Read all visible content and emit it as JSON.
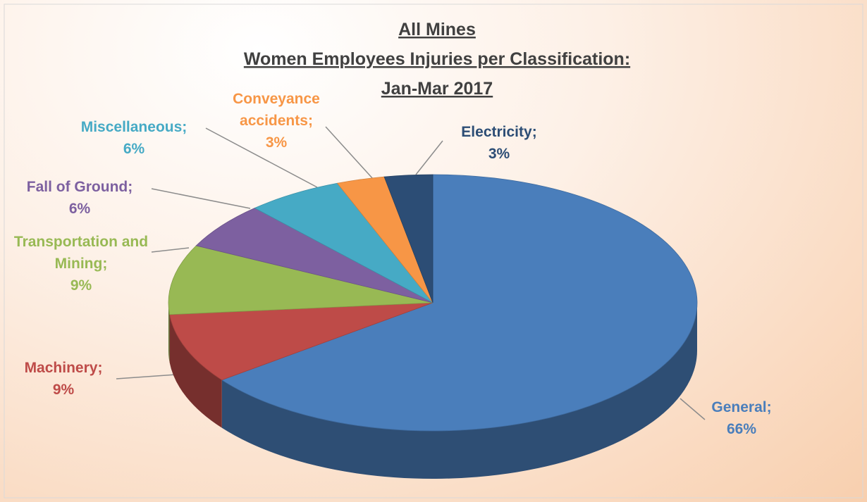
{
  "chart_data": {
    "type": "pie3d",
    "title": [
      "All Mines",
      "Women Employees Injuries per Classification:",
      "Jan-Mar 2017"
    ],
    "categories": [
      "General",
      "Machinery",
      "Transportation and Mining",
      "Fall of Ground",
      "Miscellaneous",
      "Conveyance accidents",
      "Electricity"
    ],
    "values": [
      66,
      9,
      9,
      6,
      6,
      3,
      3
    ],
    "value_labels": [
      "66%",
      "9%",
      "9%",
      "6%",
      "6%",
      "3%",
      "3%"
    ],
    "label_separator": ";",
    "colors": [
      "#4a7ebb",
      "#be4b48",
      "#98b954",
      "#7d60a0",
      "#46aac5",
      "#f79646",
      "#2c4d75"
    ]
  }
}
